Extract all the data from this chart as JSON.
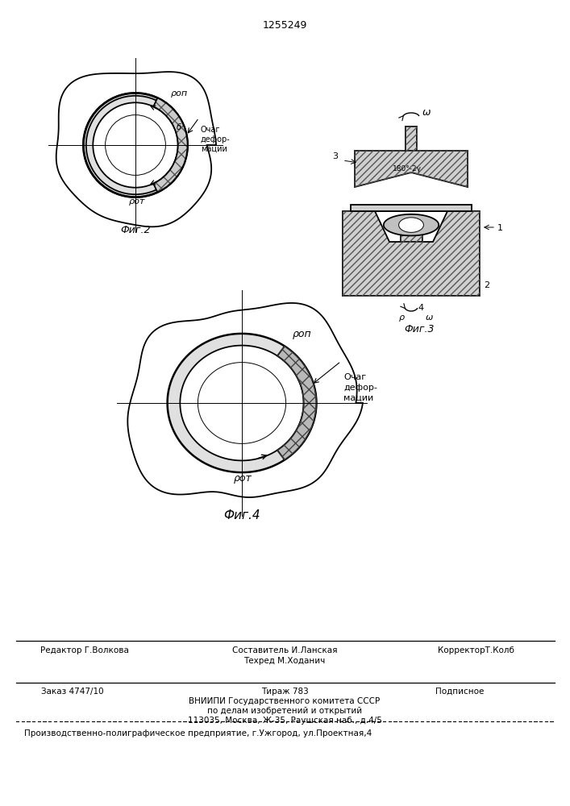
{
  "patent_number": "1255249",
  "fig2_caption": "Фиг.2",
  "fig3_caption": "Фиг.3",
  "fig4_caption": "Фиг.4",
  "label_ochag": "Очаг\nдефор-\nмации",
  "label_ochag2": "Очаг\nдефор-\nмации",
  "label_b": "б",
  "label_rho_op": "ρоп",
  "label_rho_ot": "ρот",
  "label_omega": "ω",
  "label_rho": "ρ",
  "label_1": "1",
  "label_2": "2",
  "label_3": "3",
  "label_4": "4",
  "label_angle": "180°-2γ",
  "bg_color": "#ffffff",
  "line_color": "#000000",
  "footer_editor": "Редактор Г.Волкова",
  "footer_composer": "Составитель И.Ланская",
  "footer_corrector": "КорректорТ.Колб",
  "footer_techred": "Техред М.Ходанич",
  "footer_order": "Заказ 4747/10",
  "footer_tirazh": "Тираж 783",
  "footer_podp": "Подписное",
  "footer_vniipd": "ВНИИПИ Государственного комитета СССР",
  "footer_po_delam": "по делам изобретений и открытий",
  "footer_address": "113035, Москва, Ж-35, Раушская наб., д.4/5",
  "footer_proizv": "Производственно-полиграфическое предприятие, г.Ужгород, ул.Проектная,4"
}
